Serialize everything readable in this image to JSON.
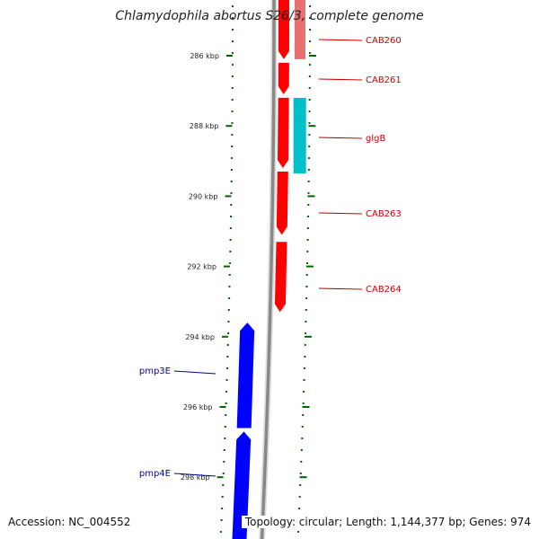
{
  "title": "Chlamydophila abortus S26/3, complete genome",
  "footer": {
    "accession": "Accession: NC_004552",
    "summary": "Topology: circular; Length: 1,144,377 bp; Genes: 974"
  },
  "colors": {
    "forward_gene": "#ff0000",
    "forward_gene_secondary": "#e87070",
    "reverse_gene": "#0000ff",
    "other_feature": "#00bfc8",
    "tick": "#006400",
    "backbone": "#888888",
    "forward_label": "#cc0000",
    "reverse_label": "#0000aa"
  },
  "axis": {
    "unit": "kbp",
    "ticks": [
      {
        "value": 286,
        "label": "286 kbp"
      },
      {
        "value": 288,
        "label": "288 kbp"
      },
      {
        "value": 290,
        "label": "290 kbp"
      },
      {
        "value": 292,
        "label": "292 kbp"
      },
      {
        "value": 294,
        "label": "294 kbp"
      },
      {
        "value": 296,
        "label": "296 kbp"
      },
      {
        "value": 298,
        "label": "298 kbp"
      }
    ]
  },
  "genes": [
    {
      "label": "CAB260",
      "strand": "forward",
      "start_kbp": 284.3,
      "end_kbp": 286.1,
      "type": "gene"
    },
    {
      "label": "CAB261",
      "strand": "forward",
      "start_kbp": 286.2,
      "end_kbp": 287.1,
      "type": "gene"
    },
    {
      "label": "glgB",
      "strand": "forward",
      "start_kbp": 287.2,
      "end_kbp": 289.2,
      "type": "gene"
    },
    {
      "label": "CAB263",
      "strand": "forward",
      "start_kbp": 289.3,
      "end_kbp": 291.1,
      "type": "gene"
    },
    {
      "label": "CAB264",
      "strand": "forward",
      "start_kbp": 291.3,
      "end_kbp": 293.3,
      "type": "gene"
    },
    {
      "label": "pmp3E",
      "strand": "reverse",
      "start_kbp": 293.6,
      "end_kbp": 296.6,
      "type": "gene"
    },
    {
      "label": "pmp4E",
      "strand": "reverse",
      "start_kbp": 296.7,
      "end_kbp": 300,
      "type": "gene"
    }
  ]
}
